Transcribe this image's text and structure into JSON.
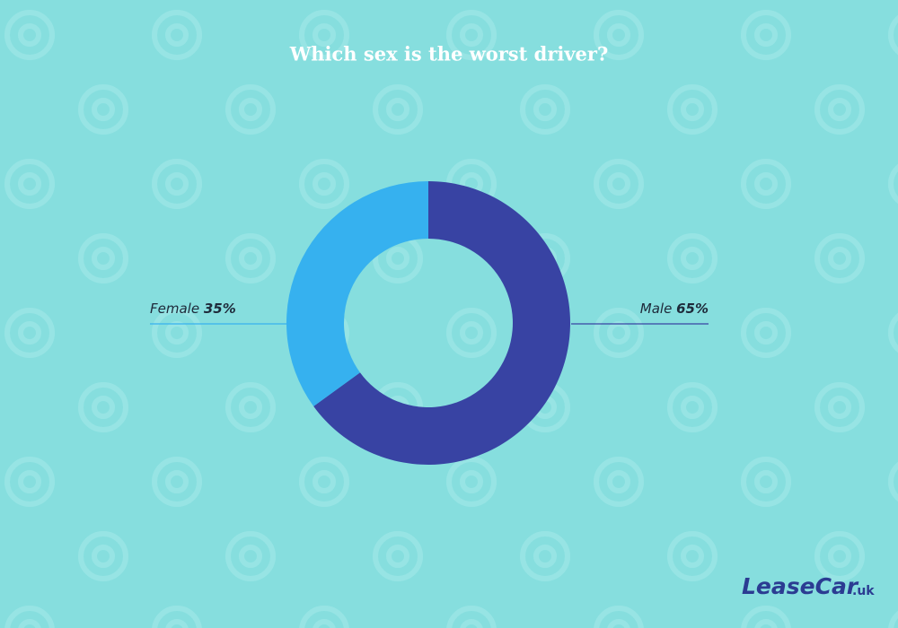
{
  "chart_data": {
    "type": "donut",
    "title": "Which sex is the worst driver?",
    "categories": [
      "Male",
      "Female"
    ],
    "values": [
      65,
      35
    ],
    "value_labels": [
      "65%",
      "35%"
    ],
    "colors": [
      "#3843a3",
      "#36b1ef"
    ]
  },
  "logo": {
    "name": "LeaseCar",
    "domain": ".uk"
  }
}
